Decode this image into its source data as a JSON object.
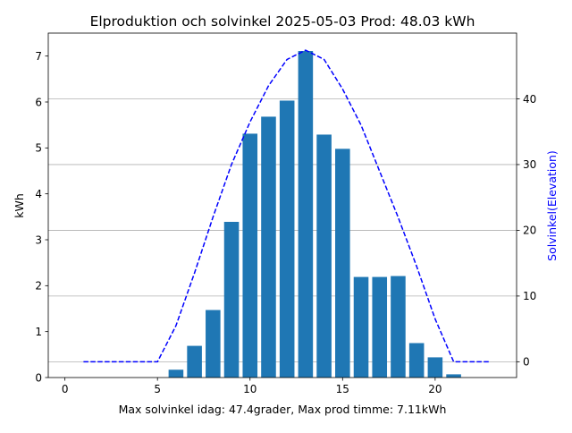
{
  "chart_data": {
    "type": "bar",
    "title": "Elproduktion och solvinkel 2025-05-03 Prod: 48.03 kWh",
    "xlabel": "Max solvinkel idag: 47.4grader, Max prod timme: 7.11kWh",
    "ylabel": "kWh",
    "y2label": "Solvinkel(Elevation)",
    "xlim": [
      -0.9,
      24.4
    ],
    "ylim": [
      0,
      7.5
    ],
    "y2lim": [
      -2.4,
      50.0
    ],
    "xticks": [
      0,
      5,
      10,
      15,
      20
    ],
    "yticks": [
      0,
      1,
      2,
      3,
      4,
      5,
      6,
      7
    ],
    "y2ticks": [
      0,
      10,
      20,
      30,
      40
    ],
    "grid": "horizontal at right-axis ticks",
    "series": [
      {
        "type": "bar",
        "color": "#1f77b4",
        "x": [
          6,
          7,
          8,
          9,
          10,
          11,
          12,
          13,
          14,
          15,
          16,
          17,
          18,
          19,
          20,
          21
        ],
        "values": [
          0.17,
          0.69,
          1.47,
          3.39,
          5.31,
          5.68,
          6.03,
          7.11,
          5.29,
          4.98,
          2.19,
          2.19,
          2.21,
          0.75,
          0.44,
          0.07
        ]
      },
      {
        "type": "line",
        "axis": "right",
        "style": "dashed",
        "color": "#0000ff",
        "x": [
          1,
          2,
          3,
          4,
          5,
          6,
          7,
          8,
          9,
          10,
          11,
          12,
          13,
          14,
          15,
          16,
          17,
          18,
          19,
          20,
          21,
          22,
          23
        ],
        "values": [
          0,
          0,
          0,
          0,
          0,
          5.5,
          13.5,
          22,
          30,
          36.5,
          42,
          46,
          47.4,
          46,
          41.5,
          36,
          29,
          22,
          14.5,
          6.5,
          0,
          0,
          0
        ]
      }
    ]
  }
}
